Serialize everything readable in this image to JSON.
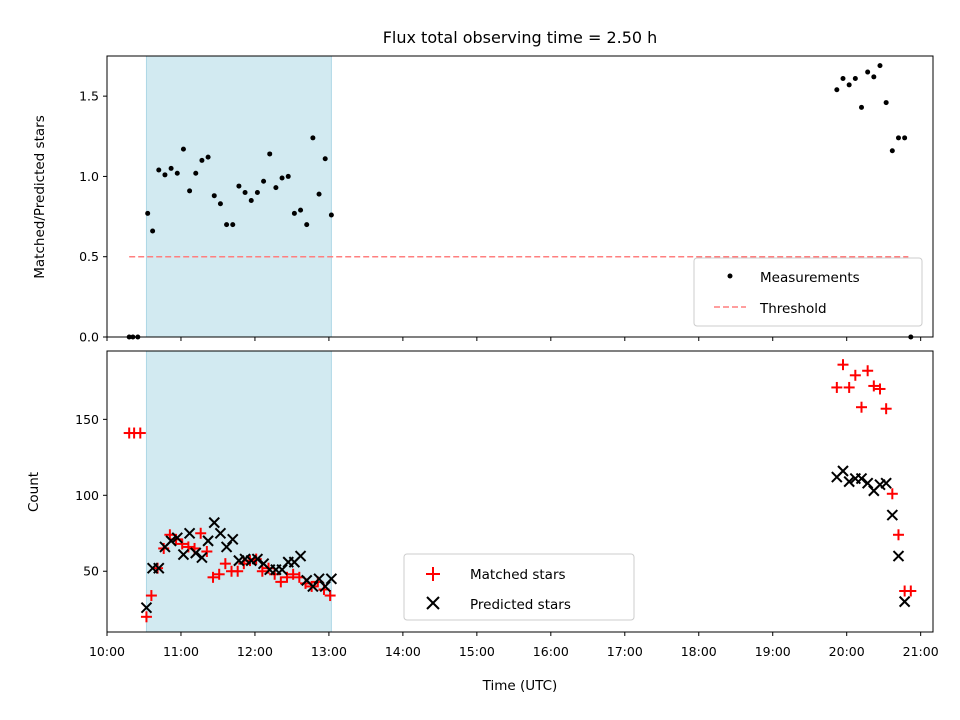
{
  "chart_data": [
    {
      "type": "scatter",
      "title": "Flux total observing time = 2.50 h",
      "xlabel": "",
      "ylabel": "Matched/Predicted stars",
      "xlim": [
        "10:00",
        "21:10"
      ],
      "ylim": [
        0,
        1.75
      ],
      "yticks": [
        "0.0",
        "0.5",
        "1.0",
        "1.5"
      ],
      "highlight_span": {
        "start": "10:32",
        "end": "13:02",
        "color": "#add8e6"
      },
      "threshold": {
        "name": "Threshold",
        "value": 0.5,
        "start": "10:18",
        "end": "20:50",
        "color": "#ff7f7f",
        "style": "dashed"
      },
      "legend": {
        "position": "lower-right",
        "entries": [
          "Measurements",
          "Threshold"
        ]
      },
      "series": [
        {
          "name": "Measurements",
          "marker": "dot",
          "color": "#000000",
          "x": [
            "10:18",
            "10:21",
            "10:25",
            "10:33",
            "10:37",
            "10:42",
            "10:47",
            "10:52",
            "10:57",
            "11:02",
            "11:07",
            "11:12",
            "11:17",
            "11:22",
            "11:27",
            "11:32",
            "11:37",
            "11:42",
            "11:47",
            "11:52",
            "11:57",
            "12:02",
            "12:07",
            "12:12",
            "12:17",
            "12:22",
            "12:27",
            "12:32",
            "12:37",
            "12:42",
            "12:47",
            "12:52",
            "12:57",
            "13:02",
            "19:52",
            "19:57",
            "20:02",
            "20:07",
            "20:12",
            "20:17",
            "20:22",
            "20:27",
            "20:32",
            "20:37",
            "20:42",
            "20:47",
            "20:52"
          ],
          "y": [
            0.0,
            0.0,
            0.0,
            0.77,
            0.66,
            1.04,
            1.01,
            1.05,
            1.02,
            1.17,
            0.91,
            1.02,
            1.1,
            1.12,
            0.88,
            0.83,
            0.7,
            0.7,
            0.94,
            0.9,
            0.85,
            0.9,
            0.97,
            1.14,
            0.93,
            0.99,
            1.0,
            0.77,
            0.79,
            0.7,
            1.24,
            0.89,
            1.11,
            0.76,
            1.54,
            1.61,
            1.57,
            1.61,
            1.43,
            1.65,
            1.62,
            1.69,
            1.46,
            1.16,
            1.24,
            1.24,
            0.0
          ]
        }
      ]
    },
    {
      "type": "scatter",
      "title": "",
      "xlabel": "Time (UTC)",
      "ylabel": "Count",
      "xlim": [
        "10:00",
        "21:10"
      ],
      "ylim": [
        10,
        195
      ],
      "xticks": [
        "10:00",
        "11:00",
        "12:00",
        "13:00",
        "14:00",
        "15:00",
        "16:00",
        "17:00",
        "18:00",
        "19:00",
        "20:00",
        "21:00"
      ],
      "yticks": [
        "50",
        "100",
        "150"
      ],
      "highlight_span": {
        "start": "10:32",
        "end": "13:02",
        "color": "#add8e6"
      },
      "legend": {
        "position": "lower-center",
        "entries": [
          "Matched stars",
          "Predicted stars"
        ]
      },
      "series": [
        {
          "name": "Matched stars",
          "marker": "plus",
          "color": "#ff0000",
          "x": [
            "10:18",
            "10:22",
            "10:27",
            "10:32",
            "10:36",
            "10:41",
            "10:46",
            "10:51",
            "10:56",
            "11:01",
            "11:06",
            "11:11",
            "11:16",
            "11:21",
            "11:26",
            "11:31",
            "11:36",
            "11:41",
            "11:46",
            "11:51",
            "11:56",
            "12:01",
            "12:06",
            "12:11",
            "12:16",
            "12:21",
            "12:26",
            "12:31",
            "12:36",
            "12:41",
            "12:46",
            "12:51",
            "12:56",
            "13:01",
            "19:52",
            "19:57",
            "20:02",
            "20:07",
            "20:12",
            "20:17",
            "20:22",
            "20:27",
            "20:32",
            "20:37",
            "20:42",
            "20:47",
            "20:52"
          ],
          "y": [
            141,
            141,
            141,
            20,
            34,
            52,
            65,
            74,
            71,
            68,
            66,
            65,
            75,
            63,
            46,
            48,
            55,
            50,
            50,
            55,
            57,
            58,
            50,
            52,
            48,
            43,
            46,
            48,
            46,
            42,
            40,
            43,
            38,
            34,
            171,
            186,
            171,
            179,
            158,
            182,
            172,
            170,
            157,
            101,
            74,
            37,
            37
          ]
        },
        {
          "name": "Predicted stars",
          "marker": "x",
          "color": "#000000",
          "x": [
            "10:32",
            "10:37",
            "10:42",
            "10:47",
            "10:52",
            "10:57",
            "11:02",
            "11:07",
            "11:12",
            "11:17",
            "11:22",
            "11:27",
            "11:32",
            "11:37",
            "11:42",
            "11:47",
            "11:52",
            "11:57",
            "12:02",
            "12:07",
            "12:12",
            "12:17",
            "12:22",
            "12:27",
            "12:32",
            "12:37",
            "12:42",
            "12:47",
            "12:52",
            "12:57",
            "13:02",
            "19:52",
            "19:57",
            "20:02",
            "20:07",
            "20:12",
            "20:17",
            "20:22",
            "20:27",
            "20:32",
            "20:37",
            "20:42",
            "20:47"
          ],
          "y": [
            26,
            52,
            52,
            66,
            70,
            72,
            61,
            75,
            62,
            59,
            70,
            82,
            75,
            66,
            71,
            57,
            58,
            57,
            58,
            55,
            51,
            51,
            51,
            56,
            56,
            60,
            44,
            40,
            45,
            40,
            45,
            112,
            116,
            109,
            111,
            111,
            108,
            103,
            107,
            108,
            87,
            60,
            30
          ]
        }
      ]
    }
  ]
}
